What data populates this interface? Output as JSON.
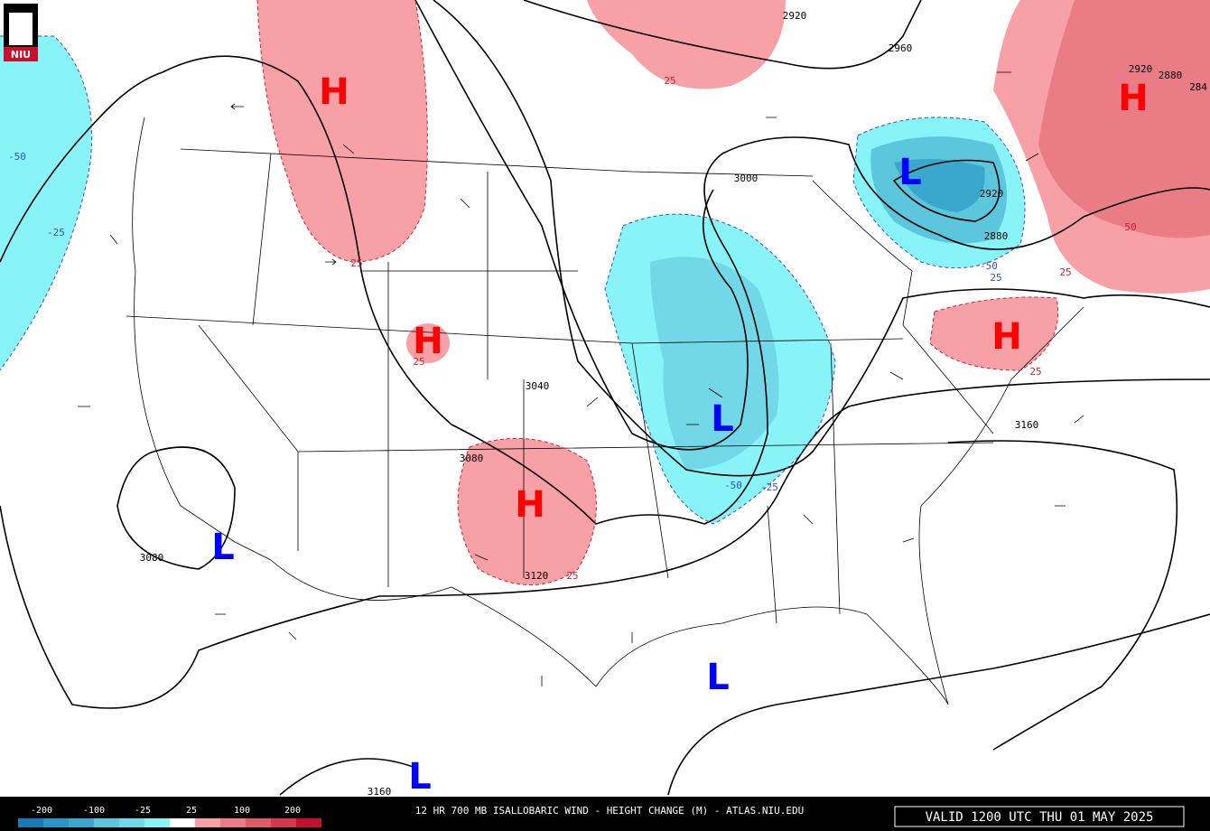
{
  "logo": "NIU",
  "centers": [
    "H",
    "H",
    "H",
    "H",
    "H",
    "L",
    "L",
    "L",
    "L",
    "L"
  ],
  "height_labels": [
    "2920",
    "2960",
    "2920",
    "2880",
    "284",
    "3000",
    "2920",
    "2880",
    "3040",
    "3080",
    "3080",
    "3120",
    "3160",
    "3160"
  ],
  "change_labels": [
    "25",
    "-50",
    "-25",
    "25",
    "25",
    "-50",
    "25",
    "50",
    "25",
    "25",
    "-50",
    "-25",
    "25"
  ],
  "colorbar_labels": [
    "-200",
    "-100",
    "-25",
    "25",
    "100",
    "200"
  ],
  "footer": {
    "title": "12 HR 700 MB ISALLOBARIC WIND - HEIGHT CHANGE (M) - ATLAS.NIU.EDU",
    "valid": "VALID 1200 UTC THU 01 MAY 2025"
  }
}
